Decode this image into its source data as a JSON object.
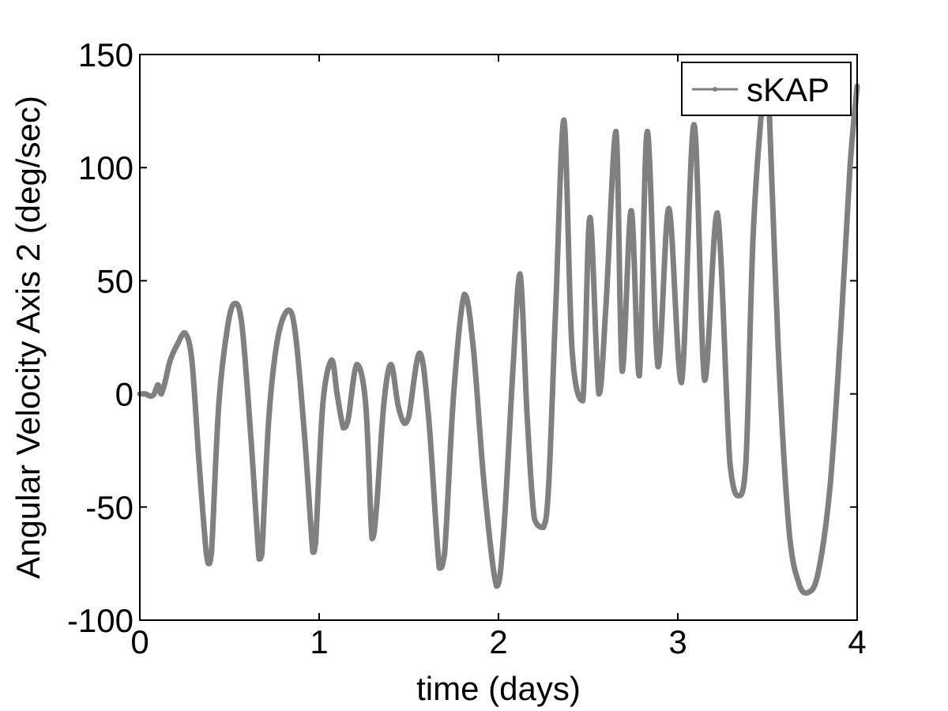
{
  "chart_data": {
    "type": "line",
    "title": "",
    "xlabel": "time (days)",
    "ylabel": "Angular Velocity Axis 2 (deg/sec)",
    "xlim": [
      0,
      4
    ],
    "ylim": [
      -100,
      150
    ],
    "xticks": [
      0,
      1,
      2,
      3,
      4
    ],
    "yticks": [
      -100,
      -50,
      0,
      50,
      100,
      150
    ],
    "grid": false,
    "legend_position": "top-right",
    "series": [
      {
        "name": "sKAP",
        "color": "#808080",
        "marker": "dot",
        "x": [
          0,
          0.03,
          0.06,
          0.08,
          0.1,
          0.11,
          0.12,
          0.14,
          0.17,
          0.21,
          0.25,
          0.29,
          0.33,
          0.37,
          0.385,
          0.4,
          0.44,
          0.49,
          0.53,
          0.57,
          0.62,
          0.665,
          0.68,
          0.72,
          0.77,
          0.83,
          0.87,
          0.92,
          0.965,
          0.98,
          1.02,
          1.07,
          1.1,
          1.135,
          1.16,
          1.21,
          1.26,
          1.295,
          1.32,
          1.36,
          1.4,
          1.44,
          1.475,
          1.5,
          1.56,
          1.61,
          1.67,
          1.7,
          1.75,
          1.81,
          1.86,
          1.92,
          1.99,
          2.03,
          2.08,
          2.12,
          2.16,
          2.2,
          2.25,
          2.28,
          2.32,
          2.365,
          2.41,
          2.47,
          2.51,
          2.56,
          2.6,
          2.655,
          2.69,
          2.74,
          2.785,
          2.83,
          2.89,
          2.95,
          3.02,
          3.09,
          3.15,
          3.22,
          3.29,
          3.34,
          3.38,
          3.42,
          3.47,
          3.49,
          3.51,
          3.56,
          3.62,
          3.68,
          3.72,
          3.78,
          3.85,
          3.91,
          3.96,
          4.0
        ],
        "y": [
          0,
          0,
          -1,
          0,
          4,
          2,
          0,
          5,
          15,
          22,
          27,
          15,
          -30,
          -70,
          -75,
          -70,
          -5,
          30,
          40,
          30,
          -20,
          -73,
          -71,
          -10,
          25,
          37,
          25,
          -20,
          -70,
          -66,
          -5,
          15,
          0,
          -15,
          -12,
          13,
          -5,
          -64,
          -50,
          -5,
          13,
          -5,
          -13,
          -10,
          18,
          -10,
          -77,
          -70,
          0,
          44,
          20,
          -40,
          -85,
          -60,
          10,
          53,
          -10,
          -55,
          -59,
          -40,
          40,
          121,
          20,
          -3,
          78,
          0,
          40,
          116,
          10,
          81,
          8,
          116,
          12,
          82,
          5,
          119,
          6,
          80,
          -30,
          -45,
          -30,
          70,
          128,
          132,
          125,
          20,
          -60,
          -85,
          -88,
          -80,
          -40,
          30,
          100,
          136
        ]
      }
    ]
  }
}
